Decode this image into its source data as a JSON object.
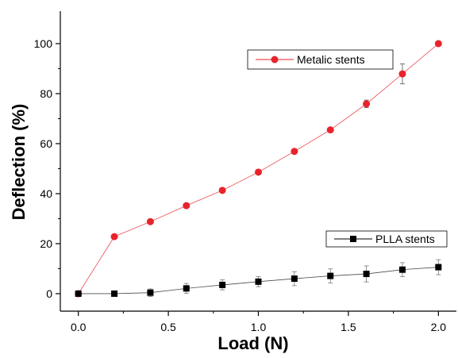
{
  "chart_data": {
    "type": "line",
    "xlabel": "Load (N)",
    "ylabel": "Deflection (%)",
    "xlim": [
      -0.1,
      2.1
    ],
    "ylim": [
      -7,
      113
    ],
    "x_ticks": [
      0.0,
      0.5,
      1.0,
      1.5,
      2.0
    ],
    "x_tick_labels": [
      "0.0",
      "0.5",
      "1.0",
      "1.5",
      "2.0"
    ],
    "y_ticks": [
      0,
      20,
      40,
      60,
      80,
      100
    ],
    "y_tick_labels": [
      "0",
      "20",
      "40",
      "60",
      "80",
      "100"
    ],
    "grid": false,
    "series": [
      {
        "name": "Metalic stents",
        "color": "#e8232b",
        "marker": "circle",
        "x": [
          0.0,
          0.2,
          0.4,
          0.6,
          0.8,
          1.0,
          1.2,
          1.4,
          1.6,
          1.8,
          2.0
        ],
        "y": [
          0,
          22.8,
          28.8,
          35.2,
          41.3,
          48.6,
          56.9,
          65.5,
          75.9,
          87.9,
          100
        ],
        "err": [
          0,
          0,
          0,
          0,
          0,
          0,
          0,
          0,
          1.5,
          4,
          0
        ]
      },
      {
        "name": "PLLA stents",
        "color": "#000000",
        "marker": "square",
        "x": [
          0.0,
          0.2,
          0.4,
          0.6,
          0.8,
          1.0,
          1.2,
          1.4,
          1.6,
          1.8,
          2.0
        ],
        "y": [
          0,
          0,
          0.4,
          2.1,
          3.5,
          4.8,
          6.0,
          7.1,
          7.9,
          9.6,
          10.6
        ],
        "err": [
          0,
          0,
          1.5,
          2.0,
          2.0,
          2.0,
          2.8,
          2.8,
          3.2,
          2.8,
          3.0
        ]
      }
    ],
    "legends": [
      {
        "series": 0,
        "placement": "upper-middle"
      },
      {
        "series": 1,
        "placement": "lower-right"
      }
    ]
  }
}
